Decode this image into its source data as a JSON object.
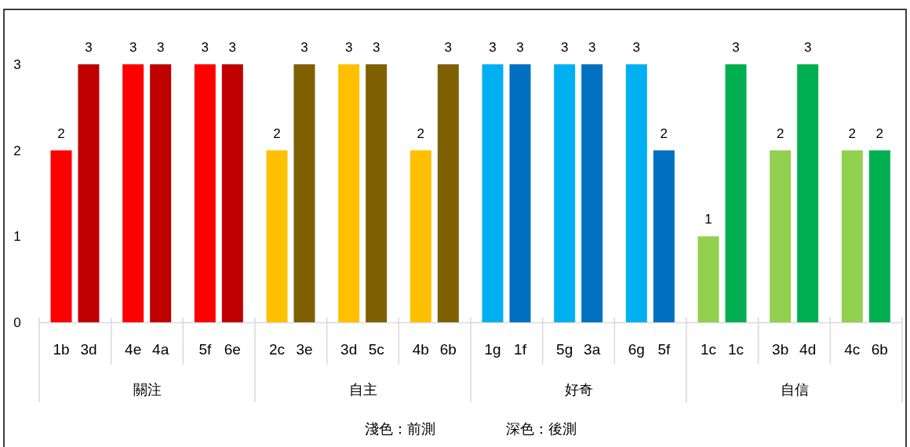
{
  "chart_data": {
    "type": "bar",
    "categories": [
      "1b",
      "3d",
      "4e",
      "4a",
      "5f",
      "6e",
      "2c",
      "3e",
      "3d",
      "5c",
      "4b",
      "6b",
      "1g",
      "1f",
      "5g",
      "3a",
      "6g",
      "5f",
      "1c",
      "1c",
      "3b",
      "4d",
      "4c",
      "6b"
    ],
    "values": [
      2,
      3,
      3,
      3,
      3,
      3,
      2,
      3,
      3,
      3,
      2,
      3,
      3,
      3,
      3,
      3,
      3,
      2,
      1,
      3,
      2,
      3,
      2,
      2
    ],
    "colors": [
      "#ff0000",
      "#c00000",
      "#ff0000",
      "#c00000",
      "#ff0000",
      "#c00000",
      "#ffc000",
      "#7f6000",
      "#ffc000",
      "#7f6000",
      "#ffc000",
      "#7f6000",
      "#00b0f0",
      "#0070c0",
      "#00b0f0",
      "#0070c0",
      "#00b0f0",
      "#0070c0",
      "#92d050",
      "#00b050",
      "#92d050",
      "#00b050",
      "#92d050",
      "#00b050"
    ],
    "ylim": [
      0,
      3
    ],
    "yticks": [
      0,
      1,
      2,
      3
    ],
    "data_labels": true,
    "grid": false,
    "annotations": [
      "關注",
      "自主",
      "好奇",
      "自信",
      "淺色：前測",
      "深色：後測"
    ]
  }
}
